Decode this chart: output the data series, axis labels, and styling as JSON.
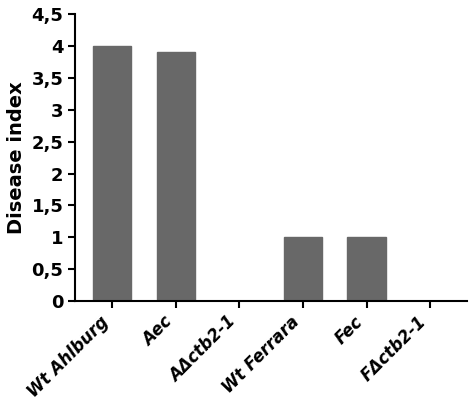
{
  "categories": [
    "Wt Ahlburg",
    "Aec",
    "AΔctb2-1",
    "Wt Ferrara",
    "Fec",
    "FΔctb2-1"
  ],
  "values": [
    4.0,
    3.9,
    0.0,
    1.0,
    1.0,
    0.0
  ],
  "bar_color": "#686868",
  "ylabel": "Disease index",
  "ylim": [
    0,
    4.5
  ],
  "yticks": [
    0,
    0.5,
    1,
    1.5,
    2,
    2.5,
    3,
    3.5,
    4,
    4.5
  ],
  "ytick_labels": [
    "0",
    "0,5",
    "1",
    "1,5",
    "2",
    "2,5",
    "3",
    "3,5",
    "4",
    "4,5"
  ],
  "bar_width": 0.6,
  "background_color": "#ffffff",
  "tick_fontsize": 13,
  "label_fontsize": 14,
  "xticklabel_fontsize": 12
}
